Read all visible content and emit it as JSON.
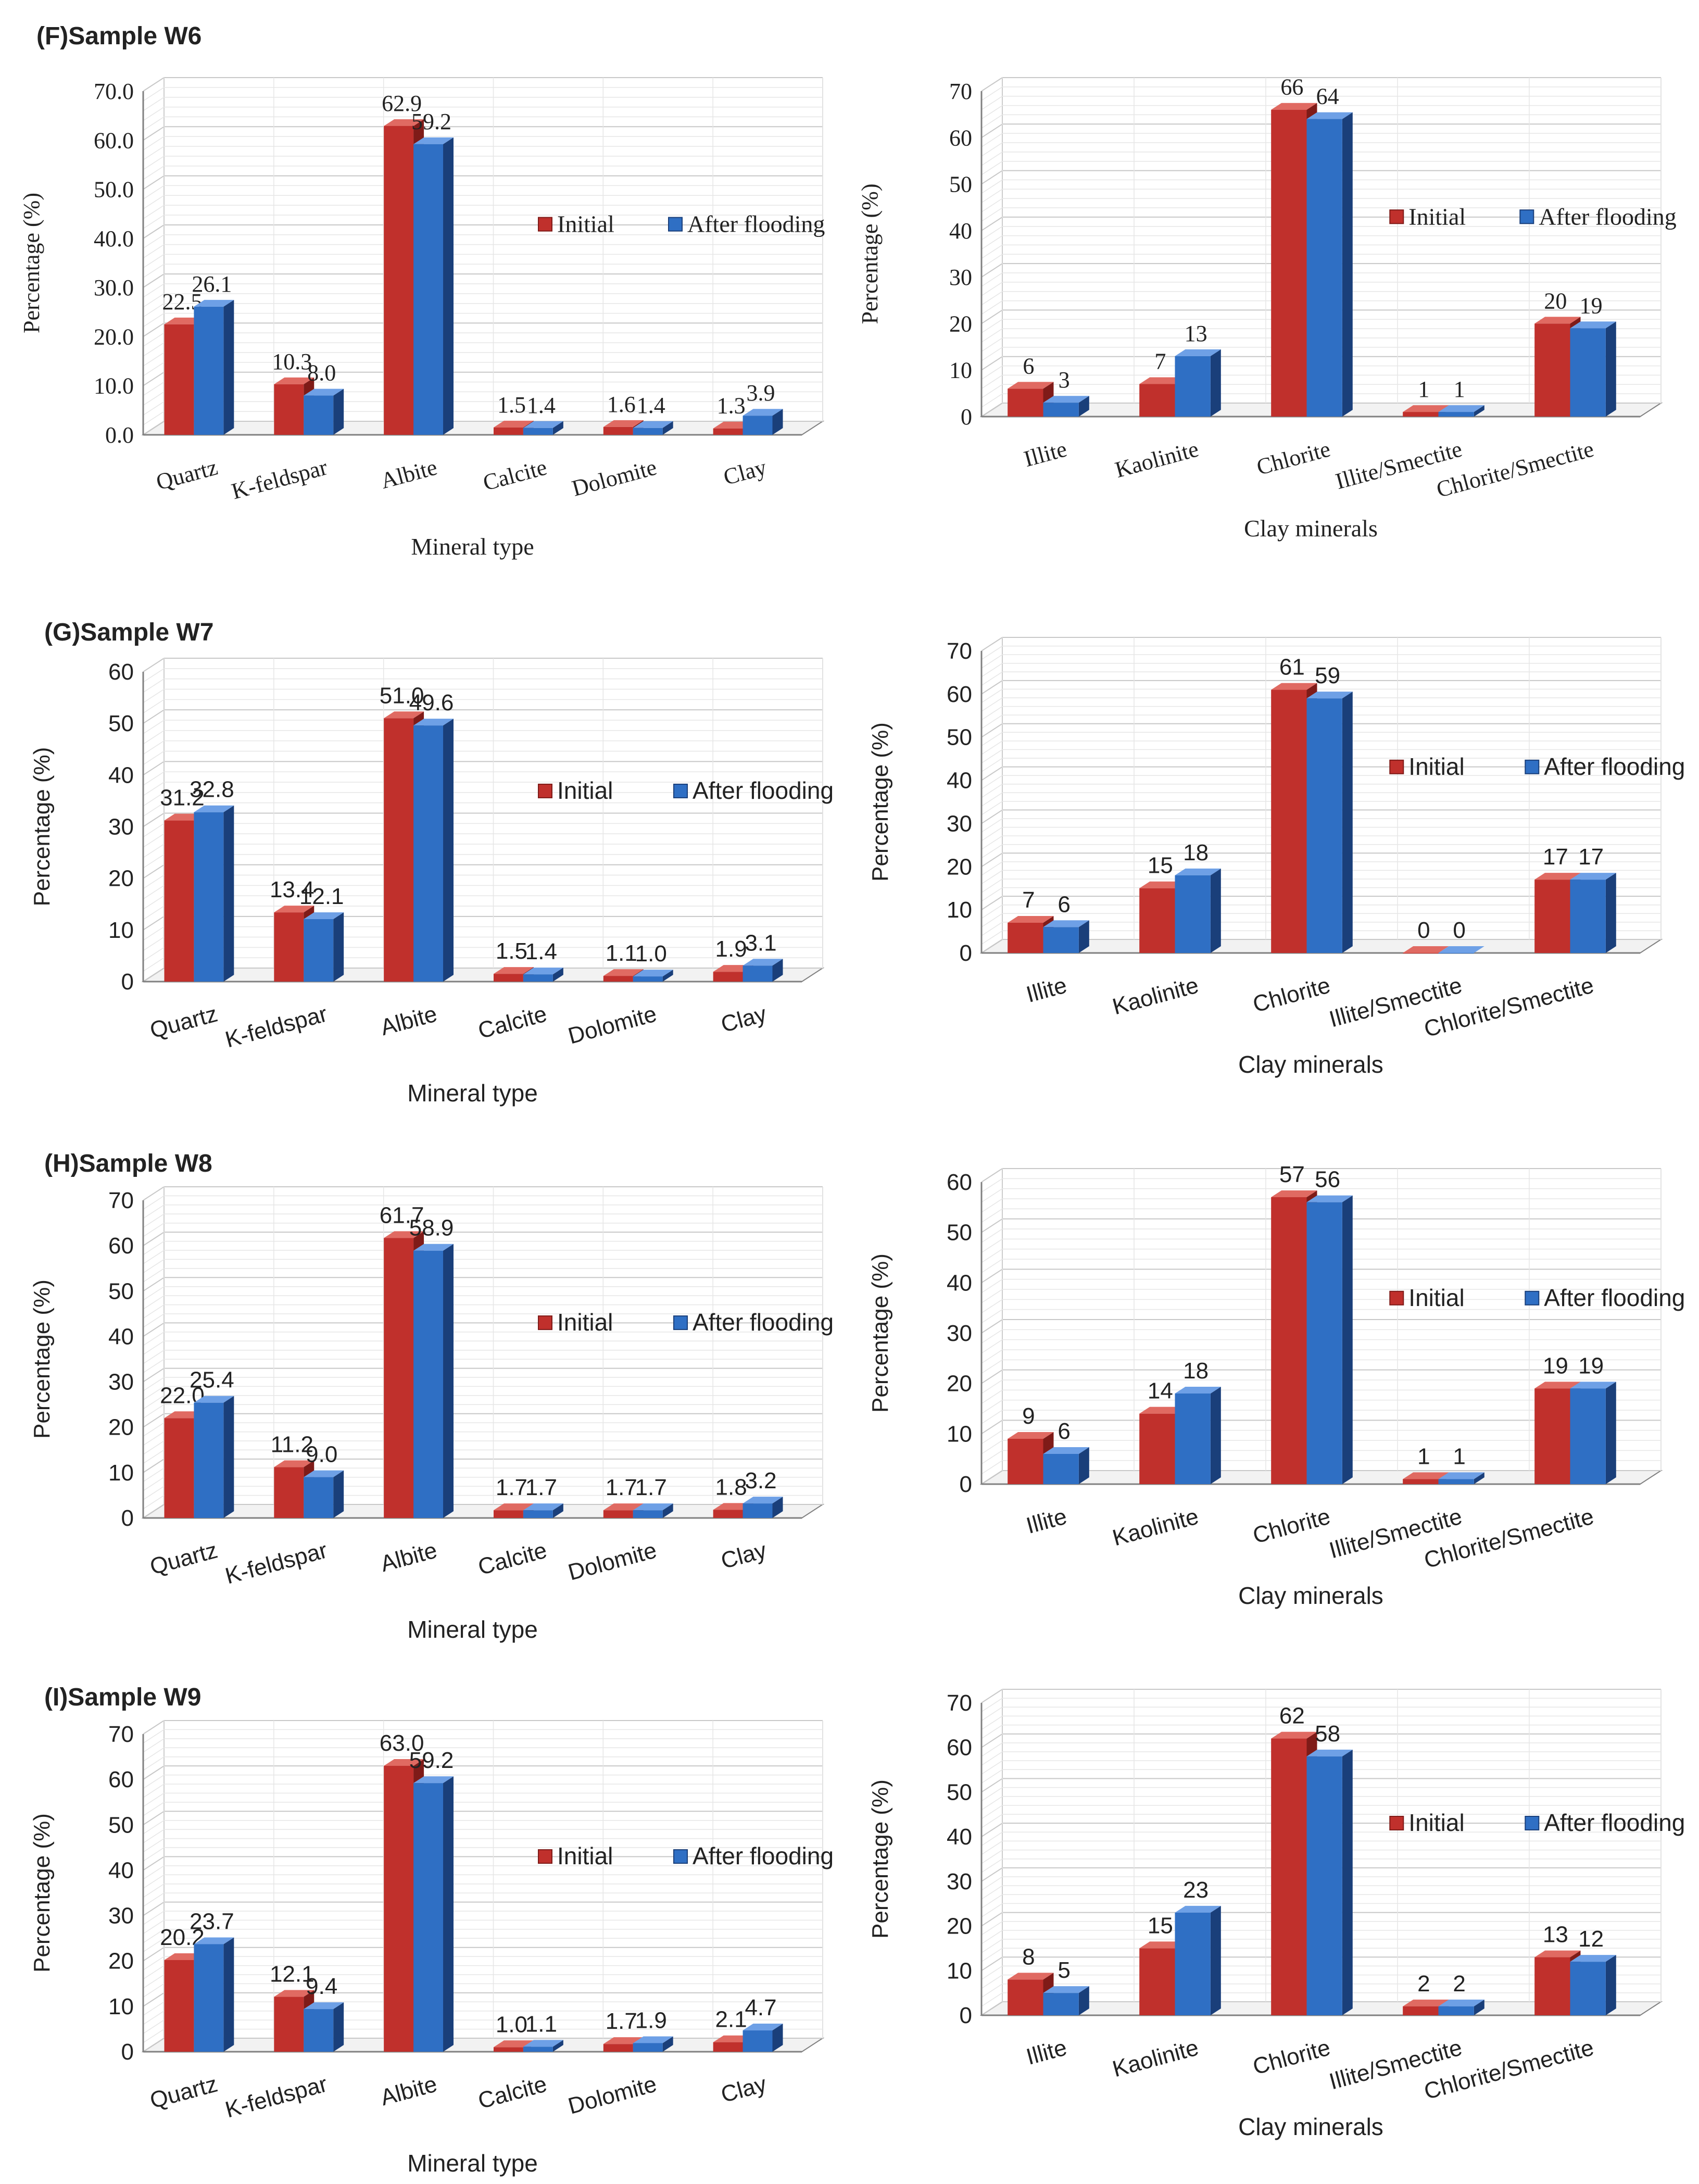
{
  "colors": {
    "initial": "#c0302c",
    "initial_dark": "#7f1b18",
    "initial_top": "#e06a62",
    "after": "#2f6fc4",
    "after_dark": "#1a3f7a",
    "after_top": "#6ea0e6",
    "grid": "#d4d4d4",
    "axis": "#808080",
    "text": "#222222"
  },
  "chart_data": [
    {
      "panel": "(F)Sample W6",
      "title": "(F)Sample W6",
      "type": "bar",
      "categories": [
        "Quartz",
        "K-feldspar",
        "Albite",
        "Calcite",
        "Dolomite",
        "Clay"
      ],
      "series": [
        {
          "name": "Initial",
          "values": [
            22.5,
            10.3,
            62.9,
            1.5,
            1.6,
            1.3
          ],
          "labels": [
            "22.5",
            "10.3",
            "62.9",
            "1.5",
            "1.6",
            "1.3"
          ]
        },
        {
          "name": "After flooding",
          "values": [
            26.1,
            8.0,
            59.2,
            1.4,
            1.4,
            3.9
          ],
          "labels": [
            "26.1",
            "8.0",
            "59.2",
            "1.4",
            "1.4",
            "3.9"
          ]
        }
      ],
      "ylim": [
        0,
        70
      ],
      "ystep": 10,
      "ytick_labels": [
        "0.0",
        "10.0",
        "20.0",
        "30.0",
        "40.0",
        "50.0",
        "60.0",
        "70.0"
      ],
      "xlabel": "Mineral type",
      "ylabel": "Percentage (%)",
      "legend": "right"
    },
    {
      "panel": "(F)Sample W6 clay",
      "title": "",
      "type": "bar",
      "categories": [
        "Illite",
        "Kaolinite",
        "Chlorite",
        "Illite/Smectite",
        "Chlorite/Smectite"
      ],
      "series": [
        {
          "name": "Initial",
          "values": [
            6,
            7,
            66,
            1,
            20
          ],
          "labels": [
            "6",
            "7",
            "66",
            "1",
            "20"
          ]
        },
        {
          "name": "After flooding",
          "values": [
            3,
            13,
            64,
            1,
            19
          ],
          "labels": [
            "3",
            "13",
            "64",
            "1",
            "19"
          ]
        }
      ],
      "ylim": [
        0,
        70
      ],
      "ystep": 10,
      "ytick_labels": [
        "0",
        "10",
        "20",
        "30",
        "40",
        "50",
        "60",
        "70"
      ],
      "xlabel": "Clay minerals",
      "ylabel": "Percentage (%)",
      "legend": "right"
    },
    {
      "panel": "(G)Sample W7",
      "title": "(G)Sample W7",
      "type": "bar",
      "categories": [
        "Quartz",
        "K-feldspar",
        "Albite",
        "Calcite",
        "Dolomite",
        "Clay"
      ],
      "series": [
        {
          "name": "Initial",
          "values": [
            31.2,
            13.4,
            51.0,
            1.5,
            1.1,
            1.9
          ],
          "labels": [
            "31.2",
            "13.4",
            "51.0",
            "1.5",
            "1.1",
            "1.9"
          ]
        },
        {
          "name": "After flooding",
          "values": [
            32.8,
            12.1,
            49.6,
            1.4,
            1.0,
            3.1
          ],
          "labels": [
            "32.8",
            "12.1",
            "49.6",
            "1.4",
            "1.0",
            "3.1"
          ]
        }
      ],
      "ylim": [
        0,
        60
      ],
      "ystep": 10,
      "ytick_labels": [
        "0",
        "10",
        "20",
        "30",
        "40",
        "50",
        "60"
      ],
      "xlabel": "Mineral type",
      "ylabel": "Percentage (%)",
      "legend": "right"
    },
    {
      "panel": "(G)Sample W7 clay",
      "title": "",
      "type": "bar",
      "categories": [
        "Illite",
        "Kaolinite",
        "Chlorite",
        "Illite/Smectite",
        "Chlorite/Smectite"
      ],
      "series": [
        {
          "name": "Initial",
          "values": [
            7,
            15,
            61,
            0,
            17
          ],
          "labels": [
            "7",
            "15",
            "61",
            "0",
            "17"
          ]
        },
        {
          "name": "After flooding",
          "values": [
            6,
            18,
            59,
            0,
            17
          ],
          "labels": [
            "6",
            "18",
            "59",
            "0",
            "17"
          ]
        }
      ],
      "ylim": [
        0,
        70
      ],
      "ystep": 10,
      "ytick_labels": [
        "0",
        "10",
        "20",
        "30",
        "40",
        "50",
        "60",
        "70"
      ],
      "xlabel": "Clay minerals",
      "ylabel": "Percentage (%)",
      "legend": "right"
    },
    {
      "panel": "(H)Sample W8",
      "title": "(H)Sample W8",
      "type": "bar",
      "categories": [
        "Quartz",
        "K-feldspar",
        "Albite",
        "Calcite",
        "Dolomite",
        "Clay"
      ],
      "series": [
        {
          "name": "Initial",
          "values": [
            22.0,
            11.2,
            61.7,
            1.7,
            1.7,
            1.8
          ],
          "labels": [
            "22.0",
            "11.2",
            "61.7",
            "1.7",
            "1.7",
            "1.8"
          ]
        },
        {
          "name": "After flooding",
          "values": [
            25.4,
            9.0,
            58.9,
            1.7,
            1.7,
            3.2
          ],
          "labels": [
            "25.4",
            "9.0",
            "58.9",
            "1.7",
            "1.7",
            "3.2"
          ]
        }
      ],
      "ylim": [
        0,
        70
      ],
      "ystep": 10,
      "ytick_labels": [
        "0",
        "10",
        "20",
        "30",
        "40",
        "50",
        "60",
        "70"
      ],
      "xlabel": "Mineral type",
      "ylabel": "Percentage (%)",
      "legend": "right"
    },
    {
      "panel": "(H)Sample W8 clay",
      "title": "",
      "type": "bar",
      "categories": [
        "Illite",
        "Kaolinite",
        "Chlorite",
        "Illite/Smectite",
        "Chlorite/Smectite"
      ],
      "series": [
        {
          "name": "Initial",
          "values": [
            9,
            14,
            57,
            1,
            19
          ],
          "labels": [
            "9",
            "14",
            "57",
            "1",
            "19"
          ]
        },
        {
          "name": "After flooding",
          "values": [
            6,
            18,
            56,
            1,
            19
          ],
          "labels": [
            "6",
            "18",
            "56",
            "1",
            "19"
          ]
        }
      ],
      "ylim": [
        0,
        60
      ],
      "ystep": 10,
      "ytick_labels": [
        "0",
        "10",
        "20",
        "30",
        "40",
        "50",
        "60"
      ],
      "xlabel": "Clay minerals",
      "ylabel": "Percentage (%)",
      "legend": "right"
    },
    {
      "panel": "(I)Sample W9",
      "title": "(I)Sample W9",
      "type": "bar",
      "categories": [
        "Quartz",
        "K-feldspar",
        "Albite",
        "Calcite",
        "Dolomite",
        "Clay"
      ],
      "series": [
        {
          "name": "Initial",
          "values": [
            20.2,
            12.1,
            63.0,
            1.0,
            1.7,
            2.1
          ],
          "labels": [
            "20.2",
            "12.1",
            "63.0",
            "1.0",
            "1.7",
            "2.1"
          ]
        },
        {
          "name": "After flooding",
          "values": [
            23.7,
            9.4,
            59.2,
            1.1,
            1.9,
            4.7
          ],
          "labels": [
            "23.7",
            "9.4",
            "59.2",
            "1.1",
            "1.9",
            "4.7"
          ]
        }
      ],
      "ylim": [
        0,
        70
      ],
      "ystep": 10,
      "ytick_labels": [
        "0",
        "10",
        "20",
        "30",
        "40",
        "50",
        "60",
        "70"
      ],
      "xlabel": "Mineral type",
      "ylabel": "Percentage (%)",
      "legend": "right"
    },
    {
      "panel": "(I)Sample W9 clay",
      "title": "",
      "type": "bar",
      "categories": [
        "Illite",
        "Kaolinite",
        "Chlorite",
        "Illite/Smectite",
        "Chlorite/Smectite"
      ],
      "series": [
        {
          "name": "Initial",
          "values": [
            8,
            15,
            62,
            2,
            13
          ],
          "labels": [
            "8",
            "15",
            "62",
            "2",
            "13"
          ]
        },
        {
          "name": "After flooding",
          "values": [
            5,
            23,
            58,
            2,
            12
          ],
          "labels": [
            "5",
            "23",
            "58",
            "2",
            "12"
          ]
        }
      ],
      "ylim": [
        0,
        70
      ],
      "ystep": 10,
      "ytick_labels": [
        "0",
        "10",
        "20",
        "30",
        "40",
        "50",
        "60",
        "70"
      ],
      "xlabel": "Clay minerals",
      "ylabel": "Percentage (%)",
      "legend": "right"
    }
  ]
}
